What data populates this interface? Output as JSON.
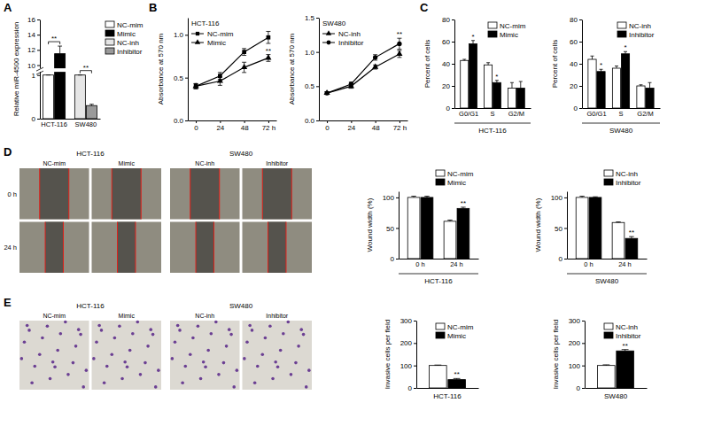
{
  "chart_data": [
    {
      "type": "bar",
      "panel_label": "A",
      "categories": [
        "HCT-116",
        "SW480"
      ],
      "ylabel": "Relative miR-4500 expression",
      "ylim": [
        0,
        16
      ],
      "yticks": [
        0,
        1,
        10,
        12,
        14,
        16
      ],
      "legend": "right",
      "series": [
        {
          "name": "NC-mim",
          "color": "#ffffff",
          "values": [
            1.0,
            null
          ],
          "errors": [
            0.02,
            null
          ]
        },
        {
          "name": "Mimic",
          "color": "#000000",
          "values": [
            11.5,
            null
          ],
          "errors": [
            1.0,
            null
          ],
          "significance": [
            "**",
            null
          ]
        },
        {
          "name": "NC-inh",
          "color": "#e6e6e6",
          "values": [
            null,
            1.0
          ],
          "errors": [
            null,
            0.02
          ]
        },
        {
          "name": "Inhibitor",
          "color": "#9a9a9a",
          "values": [
            null,
            0.3
          ],
          "errors": [
            null,
            0.03
          ],
          "significance": [
            null,
            "**"
          ]
        }
      ]
    },
    {
      "type": "line",
      "panel_label": "B",
      "title": "HCT-116",
      "x": [
        0,
        24,
        48,
        72
      ],
      "xlim": [
        -8,
        80
      ],
      "xticks": [
        0,
        24,
        48,
        {
          "value": 72,
          "label": "72 h"
        }
      ],
      "ylabel": "Absorbance at 570 nm",
      "ylim": [
        0,
        1.2
      ],
      "yticks": [
        {
          "value": 0,
          "label": "0.0"
        },
        0.5,
        {
          "value": 1,
          "label": "1.0"
        }
      ],
      "legend": "top-left",
      "series": [
        {
          "name": "NC-mim",
          "color": "#000000",
          "marker": "square",
          "values": [
            0.4,
            0.52,
            0.8,
            0.97
          ],
          "errors": [
            0.03,
            0.04,
            0.04,
            0.07
          ]
        },
        {
          "name": "Mimic",
          "color": "#000000",
          "marker": "triangle",
          "values": [
            0.4,
            0.46,
            0.62,
            0.73
          ],
          "errors": [
            0.03,
            0.05,
            0.06,
            0.04
          ],
          "significance": [
            null,
            null,
            null,
            "**"
          ]
        }
      ]
    },
    {
      "type": "line",
      "title": "SW480",
      "x": [
        0,
        24,
        48,
        72
      ],
      "xlim": [
        -8,
        80
      ],
      "xticks": [
        0,
        24,
        48,
        {
          "value": 72,
          "label": "72 h"
        }
      ],
      "ylabel": "Absorbance at 570 nm",
      "ylim": [
        0,
        1.5
      ],
      "yticks": [
        {
          "value": 0,
          "label": "0.0"
        },
        0.5,
        {
          "value": 1,
          "label": "1.0"
        },
        1.5
      ],
      "legend": "top-left",
      "series": [
        {
          "name": "NC-inh",
          "color": "#000000",
          "marker": "triangle",
          "values": [
            0.4,
            0.5,
            0.78,
            0.97
          ],
          "errors": [
            0.02,
            0.03,
            0.03,
            0.05
          ]
        },
        {
          "name": "Inhibitor",
          "color": "#000000",
          "marker": "circle",
          "values": [
            0.4,
            0.53,
            0.92,
            1.12
          ],
          "errors": [
            0.02,
            0.03,
            0.04,
            0.08
          ],
          "significance": [
            null,
            null,
            null,
            "**"
          ]
        }
      ]
    },
    {
      "type": "bar",
      "panel_label": "C",
      "categories": [
        "G0/G1",
        "S",
        "G2/M"
      ],
      "xlabel": "HCT-116",
      "ylabel": "Percent of cells",
      "ylim": [
        0,
        80
      ],
      "yticks": [
        0,
        20,
        40,
        60,
        80
      ],
      "legend": "top-right",
      "series": [
        {
          "name": "NC-mim",
          "color": "#ffffff",
          "values": [
            43,
            39,
            18
          ],
          "errors": [
            1,
            2,
            5
          ]
        },
        {
          "name": "Mimic",
          "color": "#000000",
          "values": [
            58,
            23,
            18
          ],
          "errors": [
            3,
            2,
            6
          ],
          "significance": [
            "*",
            "*",
            null
          ]
        }
      ]
    },
    {
      "type": "bar",
      "categories": [
        "G0/G1",
        "S",
        "G2/M"
      ],
      "xlabel": "SW480",
      "ylabel": "Percent of cells",
      "ylim": [
        0,
        80
      ],
      "yticks": [
        0,
        20,
        40,
        60,
        80
      ],
      "legend": "top-right",
      "series": [
        {
          "name": "NC-inh",
          "color": "#ffffff",
          "values": [
            44,
            36,
            20
          ],
          "errors": [
            3,
            2,
            1
          ]
        },
        {
          "name": "Inhibitor",
          "color": "#000000",
          "values": [
            33,
            49,
            18
          ],
          "errors": [
            2,
            2,
            5
          ],
          "significance": [
            "*",
            "*",
            null
          ]
        }
      ]
    },
    {
      "type": "image_grid",
      "panel_label": "D",
      "groups": [
        {
          "label": "HCT-116",
          "columns": [
            "NC-mim",
            "Mimic"
          ]
        },
        {
          "label": "SW480",
          "columns": [
            "NC-inh",
            "Inhibitor"
          ]
        }
      ],
      "rows": [
        "0 h",
        "24 h"
      ]
    },
    {
      "type": "bar",
      "categories": [
        "0 h",
        "24 h"
      ],
      "xlabel": "HCT-116",
      "ylabel": "Wound width (%)",
      "ylim": [
        0,
        110
      ],
      "yticks": [
        0,
        50,
        100
      ],
      "legend": "top-right",
      "series": [
        {
          "name": "NC-mim",
          "color": "#ffffff",
          "values": [
            100,
            61
          ],
          "errors": [
            2,
            2
          ]
        },
        {
          "name": "Mimic",
          "color": "#000000",
          "values": [
            100,
            82
          ],
          "errors": [
            2,
            2
          ],
          "significance": [
            null,
            "**"
          ]
        }
      ]
    },
    {
      "type": "bar",
      "categories": [
        "0 h",
        "24 h"
      ],
      "xlabel": "SW480",
      "ylabel": "Wound width (%)",
      "ylim": [
        0,
        110
      ],
      "yticks": [
        0,
        50,
        100
      ],
      "legend": "top-right",
      "series": [
        {
          "name": "NC-inh",
          "color": "#ffffff",
          "values": [
            100,
            59
          ],
          "errors": [
            2,
            1
          ]
        },
        {
          "name": "Inhibitor",
          "color": "#000000",
          "values": [
            100,
            33
          ],
          "errors": [
            1,
            3
          ],
          "significance": [
            null,
            "**"
          ]
        }
      ]
    },
    {
      "type": "image_grid",
      "panel_label": "E",
      "groups": [
        {
          "label": "HCT-116",
          "columns": [
            "NC-mim",
            "Mimic"
          ]
        },
        {
          "label": "SW480",
          "columns": [
            "NC-inh",
            "Inhibitor"
          ]
        }
      ]
    },
    {
      "type": "bar",
      "categories": [
        null
      ],
      "xlabel": "HCT-116",
      "ylabel": "Invasive cells per field",
      "ylim": [
        0,
        300
      ],
      "yticks": [
        0,
        100,
        200,
        300
      ],
      "legend": "top-right",
      "series": [
        {
          "name": "NC-mim",
          "color": "#ffffff",
          "values": [
            100
          ],
          "errors": [
            2
          ]
        },
        {
          "name": "Mimic",
          "color": "#000000",
          "values": [
            37
          ],
          "errors": [
            5
          ],
          "significance": [
            "**"
          ]
        }
      ]
    },
    {
      "type": "bar",
      "categories": [
        null
      ],
      "xlabel": "SW480",
      "ylabel": "Invasive cells per field",
      "ylim": [
        0,
        300
      ],
      "yticks": [
        0,
        100,
        200,
        300
      ],
      "legend": "top-right",
      "series": [
        {
          "name": "NC-inh",
          "color": "#ffffff",
          "values": [
            100
          ],
          "errors": [
            3
          ]
        },
        {
          "name": "Inhibitor",
          "color": "#000000",
          "values": [
            165
          ],
          "errors": [
            6
          ],
          "significance": [
            "**"
          ]
        }
      ]
    }
  ]
}
